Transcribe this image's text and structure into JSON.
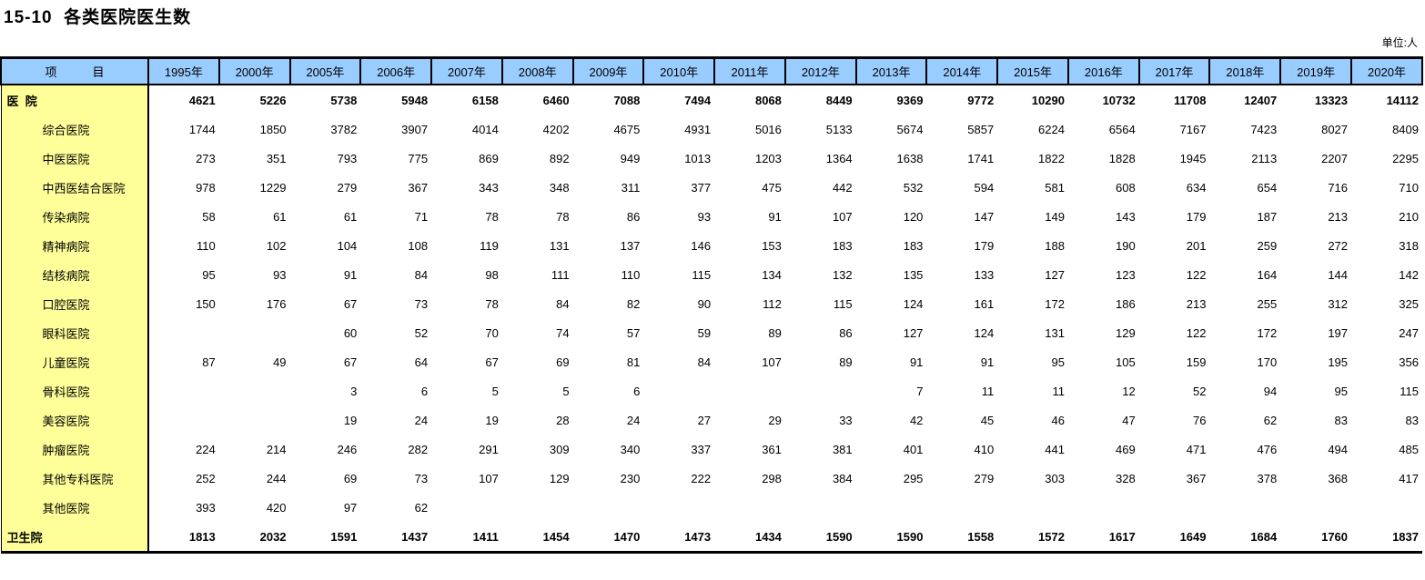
{
  "title": "15-10  各类医院医生数",
  "unit_label": "单位:人",
  "colors": {
    "header_bg": "#99CCFF",
    "item_column_bg": "#FFFF99",
    "border": "#000000"
  },
  "table": {
    "item_header": "项　　　目",
    "year_columns": [
      "1995年",
      "2000年",
      "2005年",
      "2006年",
      "2007年",
      "2008年",
      "2009年",
      "2010年",
      "2011年",
      "2012年",
      "2013年",
      "2014年",
      "2015年",
      "2016年",
      "2017年",
      "2018年",
      "2019年",
      "2020年"
    ],
    "rows": [
      {
        "label": "医  院",
        "bold": true,
        "values": [
          "4621",
          "5226",
          "5738",
          "5948",
          "6158",
          "6460",
          "7088",
          "7494",
          "8068",
          "8449",
          "9369",
          "9772",
          "10290",
          "10732",
          "11708",
          "12407",
          "13323",
          "14112"
        ]
      },
      {
        "label": "综合医院",
        "bold": false,
        "values": [
          "1744",
          "1850",
          "3782",
          "3907",
          "4014",
          "4202",
          "4675",
          "4931",
          "5016",
          "5133",
          "5674",
          "5857",
          "6224",
          "6564",
          "7167",
          "7423",
          "8027",
          "8409"
        ]
      },
      {
        "label": "中医医院",
        "bold": false,
        "values": [
          "273",
          "351",
          "793",
          "775",
          "869",
          "892",
          "949",
          "1013",
          "1203",
          "1364",
          "1638",
          "1741",
          "1822",
          "1828",
          "1945",
          "2113",
          "2207",
          "2295"
        ]
      },
      {
        "label": "中西医结合医院",
        "bold": false,
        "values": [
          "978",
          "1229",
          "279",
          "367",
          "343",
          "348",
          "311",
          "377",
          "475",
          "442",
          "532",
          "594",
          "581",
          "608",
          "634",
          "654",
          "716",
          "710"
        ]
      },
      {
        "label": "传染病院",
        "bold": false,
        "values": [
          "58",
          "61",
          "61",
          "71",
          "78",
          "78",
          "86",
          "93",
          "91",
          "107",
          "120",
          "147",
          "149",
          "143",
          "179",
          "187",
          "213",
          "210"
        ]
      },
      {
        "label": "精神病院",
        "bold": false,
        "values": [
          "110",
          "102",
          "104",
          "108",
          "119",
          "131",
          "137",
          "146",
          "153",
          "183",
          "183",
          "179",
          "188",
          "190",
          "201",
          "259",
          "272",
          "318"
        ]
      },
      {
        "label": "结核病院",
        "bold": false,
        "values": [
          "95",
          "93",
          "91",
          "84",
          "98",
          "111",
          "110",
          "115",
          "134",
          "132",
          "135",
          "133",
          "127",
          "123",
          "122",
          "164",
          "144",
          "142"
        ]
      },
      {
        "label": "口腔医院",
        "bold": false,
        "values": [
          "150",
          "176",
          "67",
          "73",
          "78",
          "84",
          "82",
          "90",
          "112",
          "115",
          "124",
          "161",
          "172",
          "186",
          "213",
          "255",
          "312",
          "325"
        ]
      },
      {
        "label": "眼科医院",
        "bold": false,
        "values": [
          "",
          "",
          "60",
          "52",
          "70",
          "74",
          "57",
          "59",
          "89",
          "86",
          "127",
          "124",
          "131",
          "129",
          "122",
          "172",
          "197",
          "247"
        ]
      },
      {
        "label": "儿童医院",
        "bold": false,
        "values": [
          "87",
          "49",
          "67",
          "64",
          "67",
          "69",
          "81",
          "84",
          "107",
          "89",
          "91",
          "91",
          "95",
          "105",
          "159",
          "170",
          "195",
          "356"
        ]
      },
      {
        "label": "骨科医院",
        "bold": false,
        "values": [
          "",
          "",
          "3",
          "6",
          "5",
          "5",
          "6",
          "",
          "",
          "",
          "7",
          "11",
          "11",
          "12",
          "52",
          "94",
          "95",
          "115"
        ]
      },
      {
        "label": "美容医院",
        "bold": false,
        "values": [
          "",
          "",
          "19",
          "24",
          "19",
          "28",
          "24",
          "27",
          "29",
          "33",
          "42",
          "45",
          "46",
          "47",
          "76",
          "62",
          "83",
          "83"
        ]
      },
      {
        "label": "肿瘤医院",
        "bold": false,
        "values": [
          "224",
          "214",
          "246",
          "282",
          "291",
          "309",
          "340",
          "337",
          "361",
          "381",
          "401",
          "410",
          "441",
          "469",
          "471",
          "476",
          "494",
          "485"
        ]
      },
      {
        "label": "其他专科医院",
        "bold": false,
        "values": [
          "252",
          "244",
          "69",
          "73",
          "107",
          "129",
          "230",
          "222",
          "298",
          "384",
          "295",
          "279",
          "303",
          "328",
          "367",
          "378",
          "368",
          "417"
        ]
      },
      {
        "label": "其他医院",
        "bold": false,
        "values": [
          "393",
          "420",
          "97",
          "62",
          "",
          "",
          "",
          "",
          "",
          "",
          "",
          "",
          "",
          "",
          "",
          "",
          "",
          ""
        ]
      },
      {
        "label": "卫生院",
        "bold": true,
        "values": [
          "1813",
          "2032",
          "1591",
          "1437",
          "1411",
          "1454",
          "1470",
          "1473",
          "1434",
          "1590",
          "1590",
          "1558",
          "1572",
          "1617",
          "1649",
          "1684",
          "1760",
          "1837"
        ]
      }
    ]
  }
}
